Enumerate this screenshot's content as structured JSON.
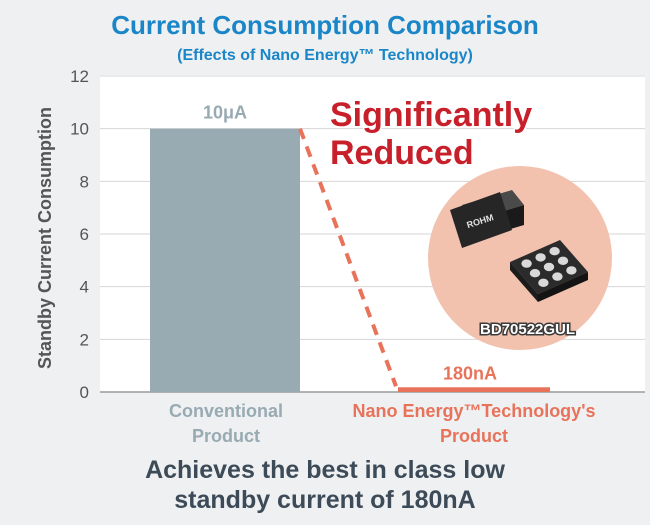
{
  "colors": {
    "title": "#1a86c8",
    "conventional": "#98aab2",
    "nano": "#e8735a",
    "highlight": "#c8202a",
    "text_dark": "#3c4b57",
    "axis_text": "#555555",
    "chip_bg": "#f2c2ae"
  },
  "chart_data": {
    "type": "bar",
    "title": "Current Consumption Comparison",
    "subtitle": "(Effects of Nano Energy™ Technology)",
    "ylabel": "Standby Current Consumption",
    "ylim": [
      0,
      12
    ],
    "yticks": [
      0,
      2,
      4,
      6,
      8,
      10,
      12
    ],
    "categories": [
      [
        "Conventional",
        "Product"
      ],
      [
        "Nano Energy™Technology's",
        "Product"
      ]
    ],
    "values": [
      10,
      0.18
    ],
    "data_labels": [
      "10μA",
      "180nA"
    ],
    "grid": true,
    "annotation": [
      "Significantly",
      "Reduced"
    ]
  },
  "chip": {
    "logo_text": "ROHM",
    "part_number": "BD70522GUL"
  },
  "footer": [
    "Achieves the best in class low",
    "standby current of 180nA"
  ]
}
